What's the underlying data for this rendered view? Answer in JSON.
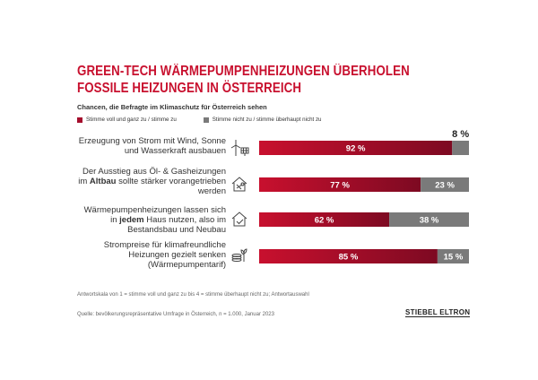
{
  "title_line1": "GREEN-TECH WÄRMEPUMPENHEIZUNGEN ÜBERHOLEN",
  "title_line2": "FOSSILE HEIZUNGEN IN ÖSTERREICH",
  "subtitle": "Chancen, die Befragte im Klimaschutz für Österreich sehen",
  "legend": {
    "agree": "Stimme voll und ganz zu / stimme zu",
    "disagree": "Stimme nicht zu / stimme überhaupt nicht zu"
  },
  "colors": {
    "agree": "#a50e2d",
    "disagree": "#7a7a7a",
    "title": "#c8102e"
  },
  "rows": [
    {
      "pre": "",
      "bold": "",
      "post": "",
      "label_lines": [
        "Erzeugung von Strom mit Wind, Sonne",
        "und Wasserkraft ausbauen"
      ],
      "icon": "wind-solar-icon"
    },
    {
      "label_lines": [
        "Der Ausstieg aus Öl- & Gasheizungen"
      ],
      "line2_pre": "im ",
      "line2_bold": "Altbau",
      "line2_post": " sollte stärker vorangetrieben",
      "line3": "werden",
      "icon": "house-tools-icon"
    },
    {
      "label_lines": [
        "Wärmepumpenheizungen lassen sich"
      ],
      "line2_pre": "in ",
      "line2_bold": "jedem",
      "line2_post": " Haus nutzen, also im",
      "line3": "Bestandsbau und Neubau",
      "icon": "house-check-icon"
    },
    {
      "label_lines": [
        "Strompreise für klimafreundliche",
        "Heizungen gezielt senken",
        "(Wärmepumpentarif)"
      ],
      "icon": "coins-plant-icon"
    }
  ],
  "chart_data": {
    "type": "bar",
    "orientation": "horizontal",
    "stacked": true,
    "categories": [
      "Erzeugung von Strom mit Wind, Sonne und Wasserkraft ausbauen",
      "Der Ausstieg aus Öl- & Gasheizungen im Altbau sollte stärker vorangetrieben werden",
      "Wärmepumpenheizungen lassen sich in jedem Haus nutzen, also im Bestandsbau und Neubau",
      "Strompreise für klimafreundliche Heizungen gezielt senken (Wärmepumpentarif)"
    ],
    "series": [
      {
        "name": "Stimme voll und ganz zu / stimme zu",
        "values": [
          92,
          77,
          62,
          85
        ],
        "labels": [
          "92 %",
          "77 %",
          "62 %",
          "85 %"
        ]
      },
      {
        "name": "Stimme nicht zu / stimme überhaupt nicht zu",
        "values": [
          8,
          23,
          38,
          15
        ],
        "labels": [
          "8 %",
          "23 %",
          "38 %",
          "15 %"
        ]
      }
    ],
    "xlim": [
      0,
      100
    ],
    "legend": "top-left"
  },
  "footnote1": "Antwortskala von 1 = stimme voll und ganz zu bis 4 = stimme überhaupt nicht zu; Antwortauswahl",
  "footnote2": "Quelle: bevölkerungsrepräsentative Umfrage in Österreich, n = 1.000, Januar 2023",
  "logo": "STIEBEL ELTRON"
}
